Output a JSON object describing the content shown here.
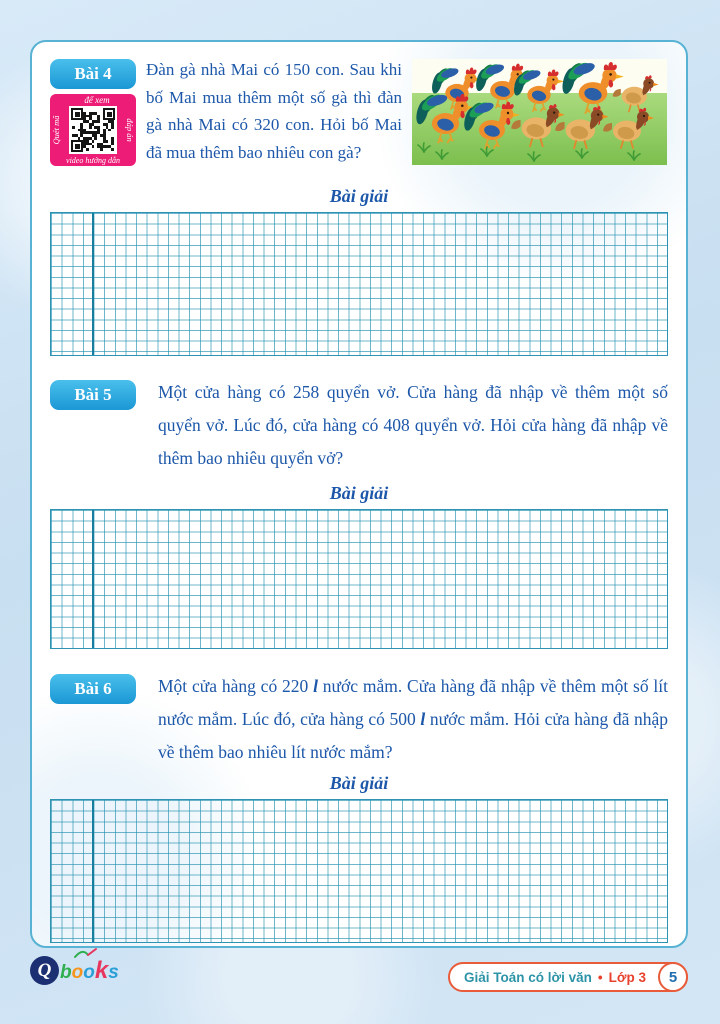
{
  "exercises": [
    {
      "badge": "Bài 4",
      "text": "Đàn gà nhà Mai có 150 con. Sau khi bố Mai mua thêm một số gà thì đàn gà nhà Mai có 320 con. Hỏi bố Mai đã mua thêm bao nhiêu con gà?",
      "solution_heading": "Bài giải"
    },
    {
      "badge": "Bài 5",
      "text": "Một cửa hàng có 258 quyển vở. Cửa hàng đã nhập về thêm một số quyển vở. Lúc đó, cửa hàng có 408 quyển vở. Hỏi cửa hàng đã nhập về thêm bao nhiêu quyển vở?",
      "solution_heading": "Bài giải"
    },
    {
      "badge": "Bài 6",
      "text_parts": [
        "Một cửa hàng có 220 ",
        "l",
        " nước mắm. Cửa hàng đã nhập về thêm một số lít nước mắm. Lúc đó, cửa hàng có 500 ",
        "l",
        " nước mắm. Hỏi cửa hàng đã nhập về thêm bao nhiêu lít nước mắm?"
      ],
      "solution_heading": "Bài giải"
    }
  ],
  "qr_label": {
    "left": "Quét mã",
    "top": "để xem",
    "right": "đáp án",
    "bottom": "video hướng dẫn"
  },
  "footer": {
    "logo_q": "Q",
    "logo_letters": [
      "b",
      "o",
      "o",
      "k",
      "s"
    ],
    "book_title": "Giải Toán có lời văn",
    "separator": "•",
    "grade": "Lớp 3",
    "page_number": "5"
  },
  "colors": {
    "badge_blue": "#29a9e0",
    "qr_magenta": "#ec1c77",
    "text_blue": "#1c57a9",
    "grid_teal": "#2a94b2",
    "pill_border": "#e85c3a",
    "pill_title_teal": "#2d94a8",
    "grade_red": "#e8412c",
    "page_num_blue": "#1f6fb0"
  }
}
